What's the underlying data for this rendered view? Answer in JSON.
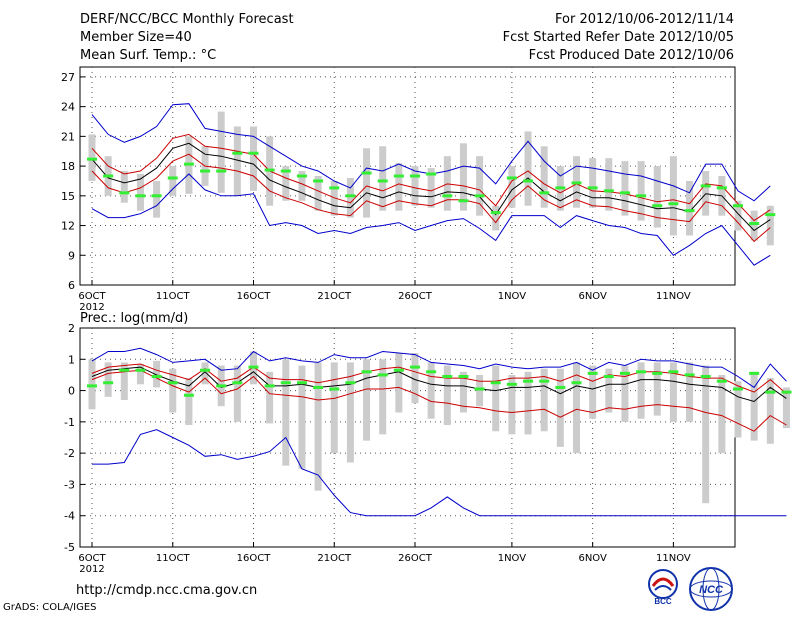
{
  "header": {
    "title": "DERF/NCC/BCC Monthly Forecast",
    "member_size": "Member Size=40",
    "variable1": "Mean Surf. Temp.: °C",
    "period": "For 2012/10/06-2012/11/14",
    "started": "Fcst Started Refer Date 2012/10/05",
    "produced": "Fcst Produced Date 2012/10/06"
  },
  "footer": {
    "url": "http://cmdp.ncc.cma.gov.cn",
    "grads": "GrADS: COLA/IGES",
    "logo_bcc": "BCC",
    "logo_ncc": "NCC"
  },
  "colors": {
    "mean": "#000000",
    "spread": "#cc0000",
    "range": "#0000cc",
    "box": "#cccccc",
    "median": "#33ee33"
  },
  "chart_data": [
    {
      "type": "line",
      "title": "Mean Surf. Temp.: °C",
      "ylabel": "",
      "ylim": [
        6,
        28
      ],
      "yticks": [
        6,
        9,
        12,
        15,
        18,
        21,
        24,
        27
      ],
      "xtick_days": [
        0,
        5,
        10,
        15,
        20,
        26,
        31,
        36
      ],
      "xtick_labels": [
        "6OCT",
        "11OCT",
        "16OCT",
        "21OCT",
        "26OCT",
        "1NOV",
        "6NOV",
        "11NOV"
      ],
      "year_label": "2012",
      "series": [
        {
          "name": "max",
          "values": [
            23.2,
            21.2,
            20.4,
            21.0,
            22.0,
            24.2,
            24.3,
            21.8,
            21.5,
            21.2,
            21.0,
            20.0,
            19.0,
            18.0,
            17.5,
            16.5,
            15.8,
            17.8,
            17.5,
            18.2,
            17.5,
            17.2,
            17.5,
            18.0,
            17.8,
            16.2,
            18.5,
            20.5,
            18.5,
            17.0,
            18.0,
            17.8,
            17.5,
            17.2,
            17.0,
            16.5,
            16.0,
            15.3,
            18.2,
            18.2,
            15.5,
            14.5,
            16.0
          ]
        },
        {
          "name": "upper",
          "values": [
            19.8,
            18.0,
            17.2,
            17.5,
            18.8,
            20.8,
            21.2,
            20.0,
            19.8,
            19.5,
            19.2,
            17.5,
            16.8,
            16.2,
            15.5,
            14.8,
            14.3,
            16.0,
            15.5,
            16.2,
            15.8,
            15.5,
            16.2,
            16.0,
            15.6,
            14.0,
            16.5,
            17.5,
            16.2,
            15.3,
            16.2,
            15.5,
            15.4,
            15.2,
            14.8,
            14.4,
            14.6,
            14.2,
            16.2,
            16.0,
            14.2,
            12.5,
            13.6
          ]
        },
        {
          "name": "mean",
          "values": [
            18.7,
            16.8,
            16.3,
            16.7,
            17.8,
            19.8,
            20.3,
            19.2,
            19.0,
            18.6,
            18.2,
            16.6,
            15.9,
            15.3,
            14.6,
            14.0,
            13.8,
            15.3,
            14.8,
            15.4,
            15.0,
            14.9,
            15.4,
            15.3,
            14.9,
            13.1,
            15.6,
            16.8,
            15.4,
            14.5,
            15.4,
            14.8,
            14.8,
            14.5,
            14.1,
            13.7,
            13.8,
            13.4,
            15.2,
            15.0,
            13.2,
            11.5,
            12.6
          ]
        },
        {
          "name": "lower",
          "values": [
            17.5,
            15.8,
            15.3,
            15.8,
            16.8,
            18.5,
            19.2,
            18.0,
            17.8,
            17.5,
            17.0,
            15.5,
            14.8,
            14.3,
            13.6,
            13.2,
            13.0,
            14.5,
            13.9,
            14.5,
            14.2,
            14.0,
            14.6,
            14.6,
            14.2,
            12.3,
            14.6,
            16.0,
            14.6,
            13.8,
            14.6,
            14.0,
            13.9,
            13.5,
            13.2,
            12.8,
            12.6,
            12.4,
            14.4,
            14.0,
            12.3,
            10.4,
            11.8
          ]
        },
        {
          "name": "min",
          "values": [
            13.7,
            12.8,
            12.8,
            13.2,
            14.0,
            15.7,
            17.2,
            15.6,
            15.0,
            15.0,
            15.2,
            12.0,
            12.3,
            12.0,
            11.2,
            11.5,
            11.2,
            11.8,
            12.0,
            12.3,
            11.5,
            12.0,
            12.5,
            12.7,
            11.7,
            10.5,
            13.0,
            13.0,
            13.0,
            11.8,
            13.0,
            12.5,
            12.0,
            11.8,
            11.2,
            11.0,
            9.0,
            10.0,
            11.2,
            12.0,
            10.0,
            8.0,
            9.0
          ]
        }
      ],
      "box_low": [
        16.5,
        15.0,
        14.3,
        13.5,
        12.8,
        15.0,
        15.2,
        16.0,
        15.3,
        15.0,
        15.5,
        14.0,
        14.5,
        14.5,
        13.5,
        13.0,
        12.8,
        12.8,
        13.5,
        13.5,
        14.0,
        13.8,
        13.5,
        13.5,
        13.0,
        11.5,
        13.8,
        14.0,
        13.8,
        13.5,
        13.8,
        13.8,
        13.5,
        13.0,
        12.5,
        11.8,
        11.0,
        11.0,
        13.0,
        13.0,
        11.5,
        10.5,
        10.0
      ],
      "box_high": [
        21.2,
        19.0,
        17.5,
        17.2,
        16.5,
        18.0,
        21.0,
        20.0,
        23.5,
        22.0,
        22.0,
        21.0,
        18.0,
        17.5,
        17.0,
        16.5,
        16.8,
        19.8,
        20.0,
        18.3,
        18.0,
        17.8,
        19.0,
        20.3,
        19.0,
        14.0,
        18.0,
        21.5,
        20.0,
        18.0,
        19.0,
        18.8,
        18.8,
        18.5,
        18.5,
        18.0,
        19.0,
        16.5,
        17.5,
        17.0,
        14.5,
        13.5,
        14.0
      ],
      "median": [
        18.7,
        17.0,
        15.3,
        15.0,
        15.0,
        16.8,
        18.2,
        17.5,
        17.5,
        19.3,
        19.3,
        17.6,
        17.5,
        17.0,
        16.5,
        15.8,
        15.0,
        17.3,
        16.5,
        17.0,
        17.0,
        17.2,
        15.0,
        14.5,
        15.0,
        13.3,
        16.8,
        16.5,
        15.3,
        15.8,
        16.3,
        15.8,
        15.5,
        15.3,
        15.0,
        14.0,
        14.2,
        13.5,
        16.0,
        15.8,
        14.0,
        12.2,
        13.1
      ]
    },
    {
      "type": "line",
      "title": "Prec.: log(mm/d)",
      "ylabel": "",
      "ylim": [
        -5,
        2
      ],
      "yticks": [
        -5,
        -4,
        -3,
        -2,
        -1,
        0,
        1,
        2
      ],
      "xtick_days": [
        0,
        5,
        10,
        15,
        20,
        26,
        31,
        36
      ],
      "xtick_labels": [
        "6OCT",
        "11OCT",
        "16OCT",
        "21OCT",
        "26OCT",
        "1NOV",
        "6NOV",
        "11NOV"
      ],
      "year_label": "2012",
      "series": [
        {
          "name": "max",
          "values": [
            0.95,
            1.25,
            1.25,
            1.35,
            1.15,
            0.9,
            0.95,
            1.0,
            0.65,
            0.7,
            1.25,
            0.95,
            1.05,
            0.95,
            0.9,
            1.15,
            1.05,
            1.05,
            1.25,
            1.2,
            1.15,
            0.9,
            0.85,
            0.8,
            0.7,
            0.85,
            0.75,
            0.7,
            0.75,
            0.75,
            0.9,
            0.65,
            0.9,
            0.8,
            1.0,
            0.95,
            0.95,
            0.85,
            0.75,
            0.75,
            0.45,
            0.1,
            0.85,
            0.3
          ]
        },
        {
          "name": "upper",
          "values": [
            0.55,
            0.75,
            0.8,
            0.85,
            0.65,
            0.5,
            0.35,
            0.7,
            0.3,
            0.4,
            0.75,
            0.4,
            0.35,
            0.35,
            0.25,
            0.35,
            0.45,
            0.6,
            0.7,
            0.75,
            0.6,
            0.45,
            0.4,
            0.4,
            0.3,
            0.3,
            0.4,
            0.4,
            0.45,
            0.3,
            0.5,
            0.3,
            0.5,
            0.45,
            0.6,
            0.6,
            0.55,
            0.45,
            0.4,
            0.4,
            0.15,
            -0.05,
            0.35,
            -0.1
          ]
        },
        {
          "name": "mean",
          "values": [
            0.45,
            0.65,
            0.7,
            0.75,
            0.5,
            0.3,
            0.15,
            0.6,
            0.1,
            0.25,
            0.6,
            0.15,
            0.15,
            0.2,
            0.1,
            0.15,
            0.2,
            0.4,
            0.5,
            0.6,
            0.35,
            0.2,
            0.15,
            0.15,
            0.05,
            0.0,
            0.1,
            0.1,
            0.15,
            -0.1,
            0.15,
            0.05,
            0.2,
            0.2,
            0.35,
            0.35,
            0.3,
            0.2,
            0.15,
            0.1,
            -0.2,
            -0.35,
            0.1,
            -0.25
          ]
        },
        {
          "name": "lower",
          "values": [
            0.35,
            0.55,
            0.6,
            0.65,
            0.4,
            0.15,
            -0.05,
            0.4,
            -0.1,
            0.05,
            0.45,
            -0.1,
            -0.15,
            -0.2,
            -0.3,
            -0.25,
            -0.1,
            0.05,
            0.05,
            0.1,
            -0.1,
            -0.35,
            -0.4,
            -0.5,
            -0.55,
            -0.65,
            -0.7,
            -0.65,
            -0.6,
            -0.85,
            -0.6,
            -0.7,
            -0.55,
            -0.6,
            -0.5,
            -0.45,
            -0.5,
            -0.55,
            -0.7,
            -0.8,
            -1.05,
            -1.3,
            -0.8,
            -1.1
          ]
        },
        {
          "name": "min",
          "values": [
            -2.35,
            -2.35,
            -2.3,
            -1.4,
            -1.25,
            -1.5,
            -1.75,
            -2.1,
            -2.05,
            -2.2,
            -2.1,
            -1.95,
            -1.5,
            -2.5,
            -2.7,
            -3.35,
            -3.9,
            -4.0,
            -4.0,
            -4.0,
            -4.0,
            -3.75,
            -3.4,
            -3.75,
            -4.0,
            -4.0,
            -4.0,
            -4.0,
            -4.0,
            -4.0,
            -4.0,
            -4.0,
            -4.0,
            -4.0,
            -4.0,
            -4.0,
            -4.0,
            -4.0,
            -4.0,
            -4.0,
            -4.0,
            -4.0,
            -4.0,
            -4.0
          ]
        }
      ],
      "box_low": [
        -0.6,
        -0.2,
        -0.3,
        0.2,
        0.1,
        -0.7,
        -1.1,
        0.2,
        -0.5,
        -1.0,
        0.2,
        -1.05,
        -2.4,
        -2.5,
        -3.2,
        -2.0,
        -2.3,
        -1.6,
        -1.4,
        -0.7,
        -0.4,
        -0.9,
        -1.1,
        -0.7,
        -0.5,
        -1.3,
        -1.4,
        -1.4,
        -1.3,
        -1.8,
        -2.0,
        -0.9,
        -0.7,
        -1.0,
        -0.9,
        -0.8,
        -1.0,
        -1.0,
        -3.6,
        -2.0,
        -1.5,
        -1.6,
        -1.7,
        -1.2
      ],
      "box_high": [
        1.0,
        0.9,
        0.9,
        0.85,
        0.95,
        0.7,
        0.4,
        0.9,
        0.8,
        0.8,
        1.25,
        0.6,
        1.0,
        0.8,
        0.9,
        0.9,
        0.9,
        1.0,
        1.0,
        1.2,
        1.2,
        0.9,
        0.8,
        0.6,
        0.5,
        0.8,
        0.5,
        0.6,
        0.7,
        0.7,
        0.9,
        0.8,
        0.7,
        0.8,
        0.9,
        0.9,
        0.9,
        0.9,
        0.8,
        0.5,
        0.3,
        0.6,
        0.4,
        0.1
      ],
      "median": [
        0.15,
        0.25,
        0.65,
        0.65,
        0.45,
        0.25,
        -0.15,
        0.65,
        0.15,
        0.25,
        0.75,
        0.15,
        0.25,
        0.25,
        0.1,
        0.05,
        0.25,
        0.6,
        0.5,
        0.65,
        0.75,
        0.6,
        0.45,
        0.45,
        0.05,
        0.25,
        0.2,
        0.3,
        0.3,
        0.1,
        0.25,
        0.55,
        0.45,
        0.55,
        0.6,
        0.55,
        0.6,
        0.5,
        0.45,
        0.3,
        0.05,
        0.55,
        -0.05,
        -0.05
      ]
    }
  ]
}
